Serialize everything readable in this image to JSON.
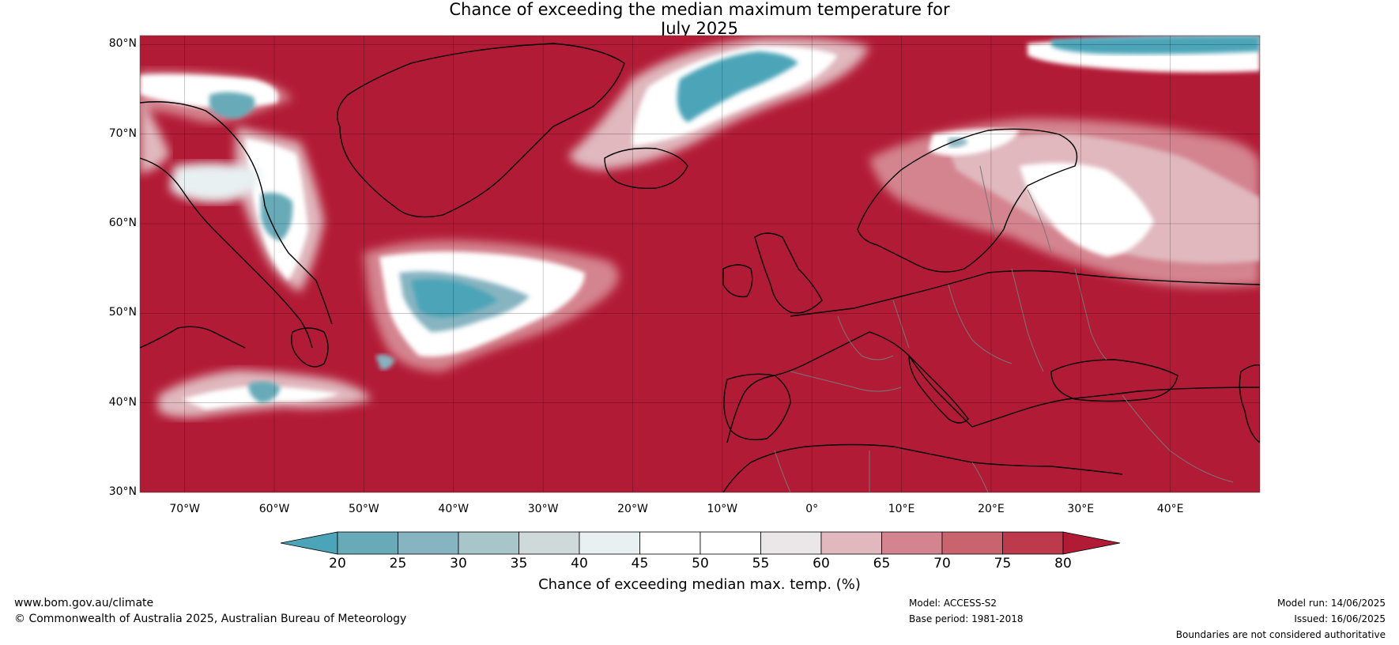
{
  "title": {
    "line1": "Chance of exceeding the median maximum temperature for",
    "line2": "July 2025"
  },
  "map": {
    "lat_ticks": [
      "80°N",
      "70°N",
      "60°N",
      "50°N",
      "40°N",
      "30°N"
    ],
    "lon_ticks": [
      "70°W",
      "60°W",
      "50°W",
      "40°W",
      "30°W",
      "20°W",
      "10°W",
      "0°",
      "10°E",
      "20°E",
      "30°E",
      "40°E"
    ],
    "extent": {
      "lon_min": -75,
      "lon_max": 50,
      "lat_min": 30,
      "lat_max": 81
    }
  },
  "colorbar": {
    "ticks": [
      "20",
      "25",
      "30",
      "35",
      "40",
      "45",
      "50",
      "55",
      "60",
      "65",
      "70",
      "75",
      "80"
    ],
    "colors": [
      "#4ba4b7",
      "#68aab8",
      "#87b4c1",
      "#a8c5ca",
      "#cfd9da",
      "#e8f0f1",
      "#ffffff",
      "#ffffff",
      "#ebe6e7",
      "#e0b8be",
      "#d4848f",
      "#c9646f",
      "#bd3a4c",
      "#b21b36"
    ],
    "label": "Chance of exceeding median max. temp. (%)"
  },
  "footer": {
    "left1": "www.bom.gov.au/climate",
    "left2": "© Commonwealth of Australia 2025, Australian Bureau of Meteorology",
    "mid1": "Model: ACCESS-S2",
    "mid2": "Base period: 1981-2018",
    "right1": "Model run: 14/06/2025",
    "right2": "Issued: 16/06/2025",
    "right3": "Boundaries are not considered authoritative"
  }
}
